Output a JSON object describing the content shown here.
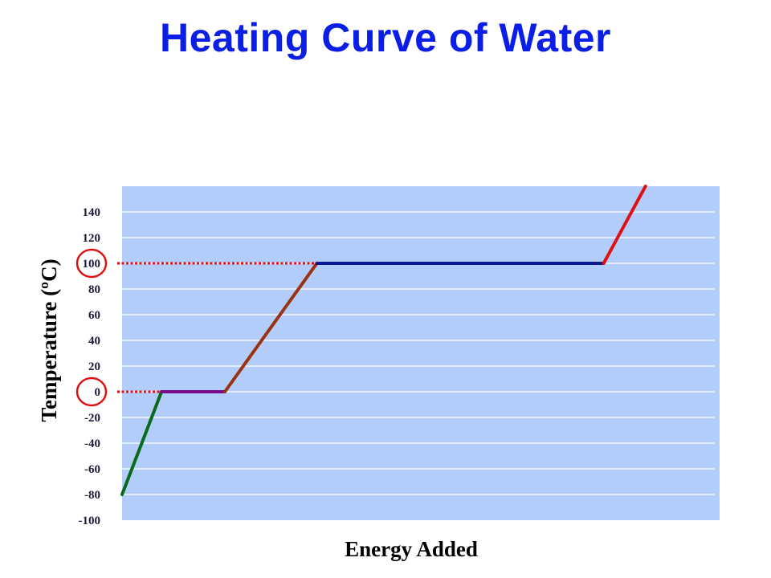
{
  "chart_data": {
    "type": "line",
    "title": "Heating Curve of Water",
    "xlabel": "Energy Added",
    "ylabel": "Temperature (ºC)",
    "y_ticks": [
      "140",
      "120",
      "100",
      "80",
      "60",
      "40",
      "20",
      "0",
      "-20",
      "-40",
      "-60",
      "-80",
      "-100"
    ],
    "y_tick_values": [
      140,
      120,
      100,
      80,
      60,
      40,
      20,
      0,
      -20,
      -40,
      -60,
      -80,
      -100
    ],
    "ylim": [
      -100,
      160
    ],
    "xlim": [
      0,
      100
    ],
    "grid": true,
    "x_ticks_shown": false,
    "highlighted_ticks": [
      100,
      0
    ],
    "plot_background": "#b3cdfa",
    "series": [
      {
        "color": "#0a6a1c",
        "points": [
          [
            0,
            -80
          ],
          [
            6.6,
            0
          ]
        ]
      },
      {
        "color": "#7a0a8c",
        "points": [
          [
            6.6,
            0
          ],
          [
            17.2,
            0
          ]
        ]
      },
      {
        "color": "#993311",
        "points": [
          [
            17.2,
            0
          ],
          [
            32.6,
            100
          ]
        ]
      },
      {
        "color": "#0a1a8c",
        "points": [
          [
            32.6,
            100
          ],
          [
            80.6,
            100
          ]
        ]
      },
      {
        "color": "#dd1111",
        "points": [
          [
            80.6,
            100
          ],
          [
            87.6,
            160
          ]
        ]
      }
    ],
    "reference_lines": [
      {
        "y": 100,
        "x_end": 32.6,
        "color": "#dd1111",
        "style": "dotted"
      },
      {
        "y": 0,
        "x_end": 6.6,
        "color": "#dd1111",
        "style": "dotted"
      }
    ]
  }
}
